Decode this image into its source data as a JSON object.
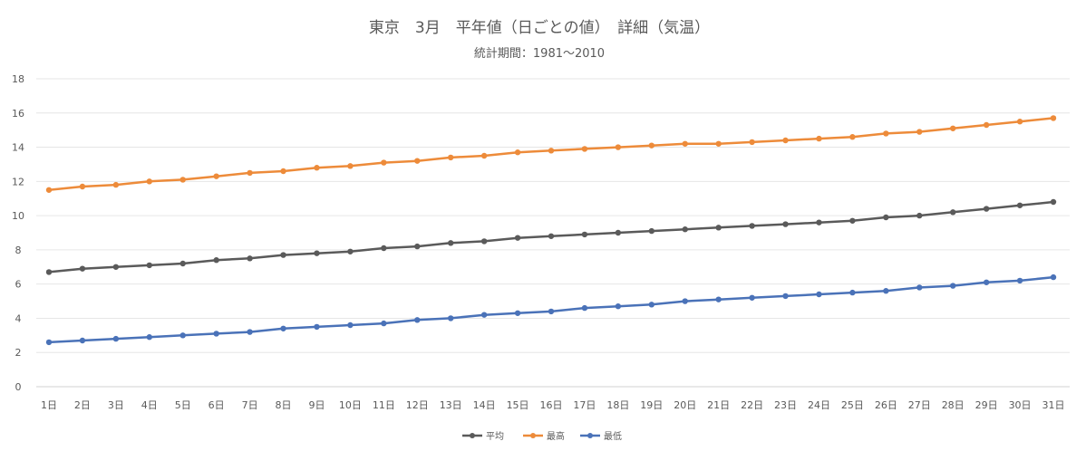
{
  "chart_data": {
    "type": "line",
    "title": "東京　3月　平年値（日ごとの値）　詳細（気温）",
    "subtitle": "統計期間：1981～2010",
    "xlabel": "",
    "ylabel": "",
    "ylim": [
      0,
      18
    ],
    "yticks": [
      0,
      2,
      4,
      6,
      8,
      10,
      12,
      14,
      16,
      18
    ],
    "grid": true,
    "legend_position": "bottom",
    "categories": [
      "1日",
      "2日",
      "3日",
      "4日",
      "5日",
      "6日",
      "7日",
      "8日",
      "9日",
      "10日",
      "11日",
      "12日",
      "13日",
      "14日",
      "15日",
      "16日",
      "17日",
      "18日",
      "19日",
      "20日",
      "21日",
      "22日",
      "23日",
      "24日",
      "25日",
      "26日",
      "27日",
      "28日",
      "29日",
      "30日",
      "31日"
    ],
    "series": [
      {
        "name": "平均",
        "color": "#5a5a5a",
        "values": [
          6.7,
          6.9,
          7.0,
          7.1,
          7.2,
          7.4,
          7.5,
          7.7,
          7.8,
          7.9,
          8.1,
          8.2,
          8.4,
          8.5,
          8.7,
          8.8,
          8.9,
          9.0,
          9.1,
          9.2,
          9.3,
          9.4,
          9.5,
          9.6,
          9.7,
          9.9,
          10.0,
          10.2,
          10.4,
          10.6,
          10.8
        ]
      },
      {
        "name": "最高",
        "color": "#ed8b3a",
        "values": [
          11.5,
          11.7,
          11.8,
          12.0,
          12.1,
          12.3,
          12.5,
          12.6,
          12.8,
          12.9,
          13.1,
          13.2,
          13.4,
          13.5,
          13.7,
          13.8,
          13.9,
          14.0,
          14.1,
          14.2,
          14.2,
          14.3,
          14.4,
          14.5,
          14.6,
          14.8,
          14.9,
          15.1,
          15.3,
          15.5,
          15.7
        ]
      },
      {
        "name": "最低",
        "color": "#4a72b8",
        "values": [
          2.6,
          2.7,
          2.8,
          2.9,
          3.0,
          3.1,
          3.2,
          3.4,
          3.5,
          3.6,
          3.7,
          3.9,
          4.0,
          4.2,
          4.3,
          4.4,
          4.6,
          4.7,
          4.8,
          5.0,
          5.1,
          5.2,
          5.3,
          5.4,
          5.5,
          5.6,
          5.8,
          5.9,
          6.1,
          6.2,
          6.4
        ]
      }
    ]
  }
}
